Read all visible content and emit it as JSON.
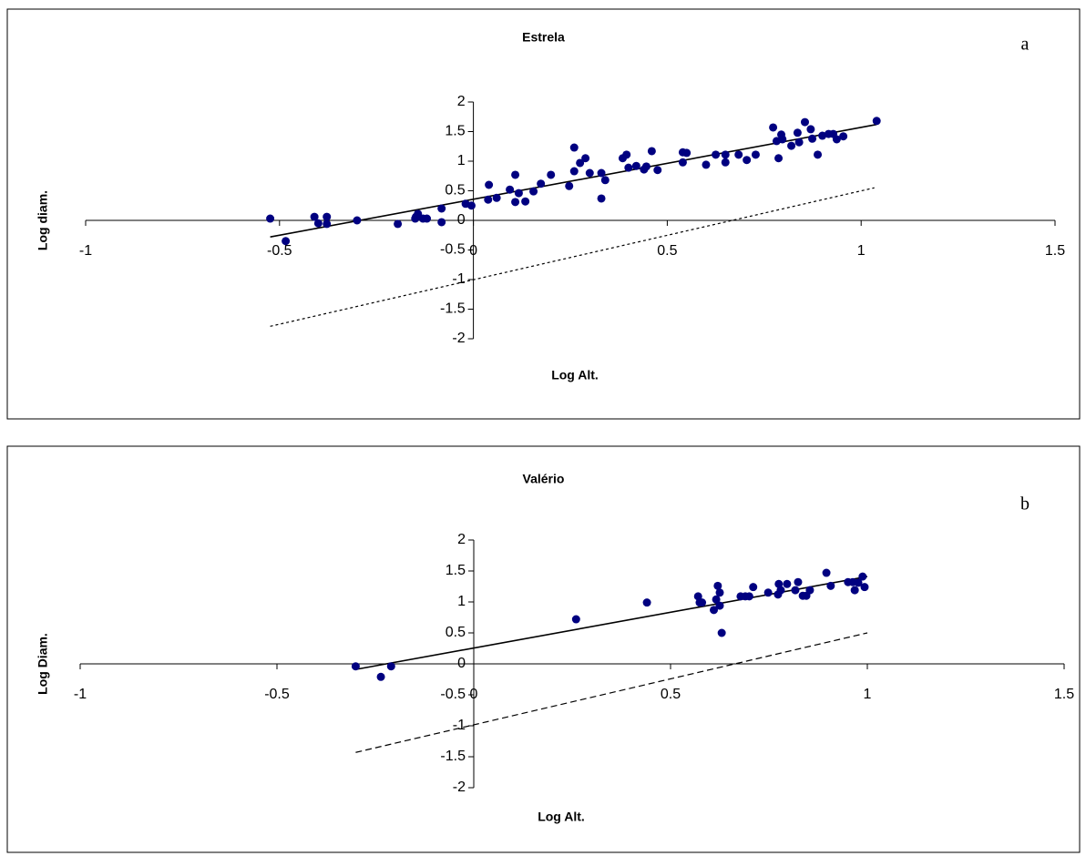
{
  "chart_data": [
    {
      "type": "scatter",
      "title": "Estrela",
      "panel_label": "a",
      "x_label": "Log Alt.",
      "y_label": "Log diam.",
      "color": "#000080",
      "x": [
        -0.524,
        -0.484,
        -0.41,
        -0.4,
        -0.378,
        -0.378,
        -0.3,
        -0.195,
        -0.15,
        -0.143,
        -0.13,
        -0.12,
        -0.148,
        -0.082,
        -0.082,
        -0.02,
        -0.005,
        0.038,
        0.04,
        0.06,
        0.094,
        0.108,
        0.108,
        0.117,
        0.134,
        0.155,
        0.174,
        0.2,
        0.247,
        0.26,
        0.26,
        0.275,
        0.289,
        0.3,
        0.33,
        0.33,
        0.34,
        0.385,
        0.395,
        0.4,
        0.42,
        0.44,
        0.446,
        0.46,
        0.475,
        0.54,
        0.54,
        0.55,
        0.6,
        0.625,
        0.65,
        0.65,
        0.684,
        0.705,
        0.728,
        0.773,
        0.782,
        0.787,
        0.794,
        0.797,
        0.82,
        0.836,
        0.84,
        0.855,
        0.87,
        0.874,
        0.888,
        0.9,
        0.916,
        0.928,
        0.937,
        0.954,
        1.04
      ],
      "y": [
        0.03,
        -0.35,
        0.06,
        -0.05,
        0.06,
        -0.06,
        0,
        -0.06,
        0.03,
        0.11,
        0.03,
        0.03,
        0.06,
        0.2,
        -0.03,
        0.28,
        0.25,
        0.35,
        0.6,
        0.38,
        0.52,
        0.77,
        0.31,
        0.46,
        0.32,
        0.49,
        0.62,
        0.77,
        0.58,
        1.23,
        0.83,
        0.97,
        1.05,
        0.8,
        0.8,
        0.37,
        0.68,
        1.05,
        1.11,
        0.89,
        0.92,
        0.86,
        0.91,
        1.17,
        0.85,
        1.15,
        0.98,
        1.14,
        0.94,
        1.11,
        1.11,
        0.98,
        1.11,
        1.02,
        1.11,
        1.57,
        1.34,
        1.05,
        1.45,
        1.37,
        1.26,
        1.48,
        1.32,
        1.66,
        1.54,
        1.38,
        1.11,
        1.43,
        1.46,
        1.46,
        1.37,
        1.42,
        1.68
      ],
      "lines": [
        {
          "x": [
            -0.524,
            1.04
          ],
          "y": [
            -0.28,
            1.62
          ],
          "style": "solid"
        },
        {
          "x": [
            -0.524,
            1.034
          ],
          "y": [
            -1.79,
            0.55
          ],
          "style": "dotted"
        }
      ],
      "xlim": [
        -1,
        1.5
      ],
      "ylim": [
        -2,
        2
      ],
      "xticks": [
        -1,
        -0.5,
        0,
        0.5,
        1,
        1.5
      ],
      "yticks": [
        -2,
        -1.5,
        -1,
        -0.5,
        0,
        0.5,
        1,
        1.5,
        2
      ]
    },
    {
      "type": "scatter",
      "title": "Valério",
      "panel_label": "b",
      "x_label": "Log Alt.",
      "y_label": "Log Diam.",
      "color": "#000080",
      "x": [
        -0.3,
        -0.236,
        -0.21,
        0.26,
        0.44,
        0.57,
        0.574,
        0.58,
        0.61,
        0.616,
        0.62,
        0.625,
        0.625,
        0.63,
        0.678,
        0.69,
        0.7,
        0.71,
        0.748,
        0.773,
        0.775,
        0.78,
        0.796,
        0.817,
        0.824,
        0.836,
        0.845,
        0.854,
        0.896,
        0.907,
        0.951,
        0.963,
        0.968,
        0.977,
        0.988,
        0.993
      ],
      "y": [
        -0.04,
        -0.21,
        -0.04,
        0.72,
        0.99,
        1.09,
        0.99,
        0.99,
        0.87,
        1.04,
        1.26,
        1.15,
        0.94,
        0.5,
        1.09,
        1.09,
        1.09,
        1.24,
        1.15,
        1.12,
        1.29,
        1.19,
        1.29,
        1.19,
        1.32,
        1.1,
        1.1,
        1.19,
        1.47,
        1.26,
        1.32,
        1.32,
        1.19,
        1.31,
        1.41,
        1.24
      ],
      "lines": [
        {
          "x": [
            -0.3,
            1.0
          ],
          "y": [
            -0.09,
            1.41
          ],
          "style": "solid"
        },
        {
          "x": [
            -0.3,
            1.0
          ],
          "y": [
            -1.43,
            0.5
          ],
          "style": "dashed"
        }
      ],
      "xlim": [
        -1,
        1.5
      ],
      "ylim": [
        -2,
        2
      ],
      "xticks": [
        -1,
        -0.5,
        0,
        0.5,
        1,
        1.5
      ],
      "yticks": [
        -2,
        -1.5,
        -1,
        -0.5,
        0,
        0.5,
        1,
        1.5,
        2
      ]
    }
  ]
}
